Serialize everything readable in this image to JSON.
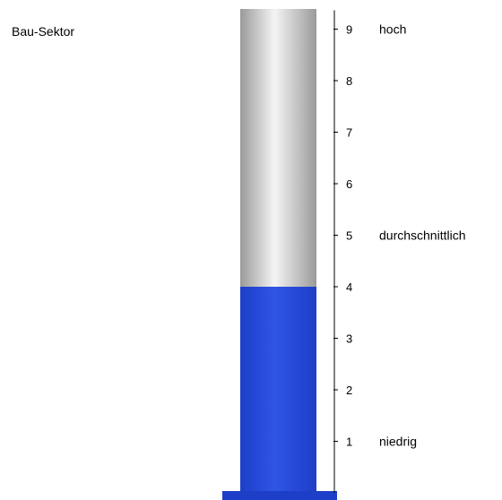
{
  "title": "Bau-Sektor",
  "colors": {
    "fill": "#2f55e6",
    "fill_dark": "#1d3fc7",
    "tube_light": "#f4f4f4",
    "tube_dark": "#9a9a9a",
    "axis": "#000000"
  },
  "chart_data": {
    "type": "bar",
    "categories": [
      "Bau-Sektor"
    ],
    "values": [
      4
    ],
    "ylim": [
      0,
      9.4
    ],
    "yticks": [
      1,
      2,
      3,
      4,
      5,
      6,
      7,
      8,
      9
    ],
    "level_labels": [
      {
        "value": 9,
        "text": "hoch"
      },
      {
        "value": 5,
        "text": "durchschnittlich"
      },
      {
        "value": 1,
        "text": "niedrig"
      }
    ],
    "grid": false,
    "legend": "none"
  }
}
